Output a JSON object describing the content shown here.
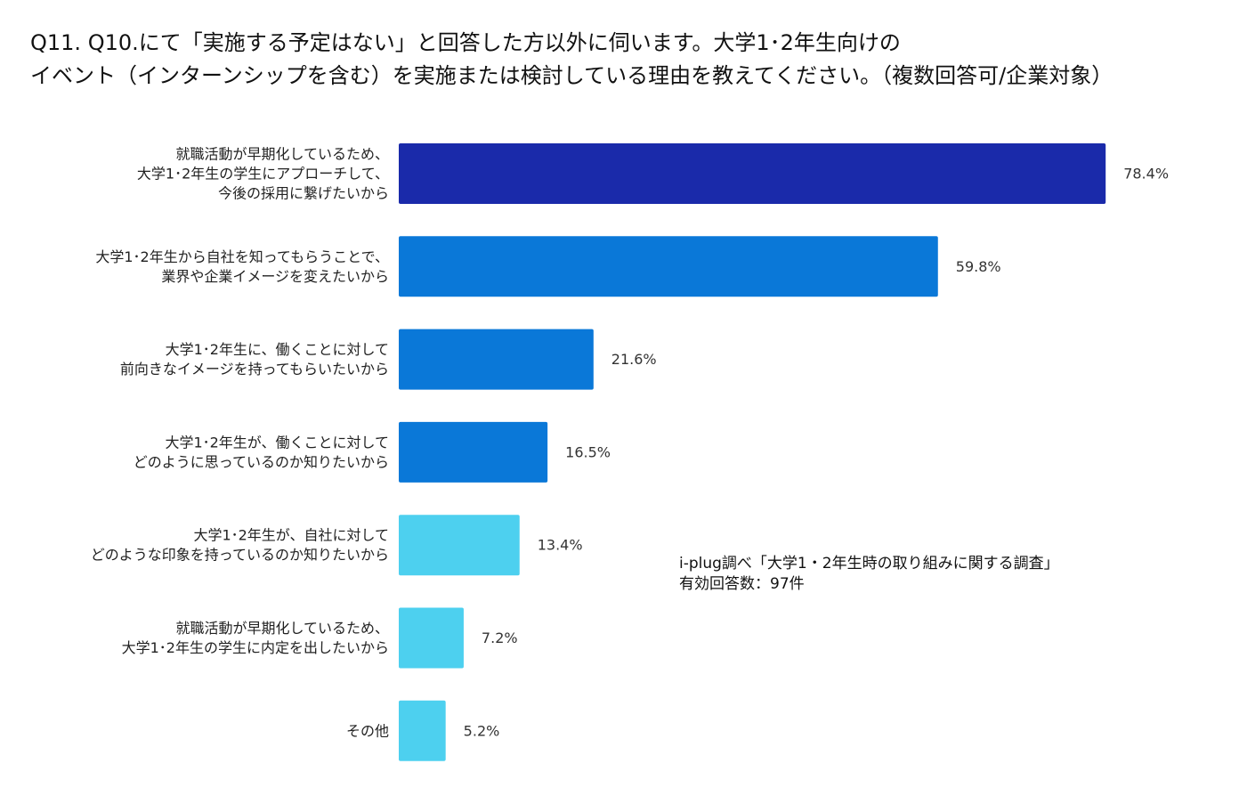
{
  "title_lines": [
    "Q11. Q10.にて「実施する予定はない」と回答した方以外に伺います。大学1･2年生向けの",
    "イベント（インターンシップを含む）を実施または検討している理由を教えてください。（複数回答可/企業対象）"
  ],
  "source": {
    "line1": "i-plug調べ「大学1・2年生時の取り組みに関する調査」",
    "line2": "有効回答数：97件"
  },
  "chart_data": {
    "type": "bar",
    "orientation": "horizontal",
    "categories": [
      [
        "就職活動が早期化しているため、",
        "大学1･2年生の学生にアプローチして、",
        "今後の採用に繋げたいから"
      ],
      [
        "大学1･2年生から自社を知ってもらうことで、",
        "業界や企業イメージを変えたいから"
      ],
      [
        "大学1･2年生に、働くことに対して",
        "前向きなイメージを持ってもらいたいから"
      ],
      [
        "大学1･2年生が、働くことに対して",
        "どのように思っているのか知りたいから"
      ],
      [
        "大学1･2年生が、自社に対して",
        "どのような印象を持っているのか知りたいから"
      ],
      [
        "就職活動が早期化しているため、",
        "大学1･2年生の学生に内定を出したいから"
      ],
      [
        "その他"
      ]
    ],
    "values": [
      78.4,
      59.8,
      21.6,
      16.5,
      13.4,
      7.2,
      5.2
    ],
    "value_labels": [
      "78.4%",
      "59.8%",
      "21.6%",
      "16.5%",
      "13.4%",
      "7.2%",
      "5.2%"
    ],
    "colors": [
      "#1a2aaa",
      "#0a78d8",
      "#0a78d8",
      "#0a78d8",
      "#4dd0ef",
      "#4dd0ef",
      "#4dd0ef"
    ],
    "xlim": [
      0,
      100
    ],
    "grid": false,
    "legend": "none"
  }
}
